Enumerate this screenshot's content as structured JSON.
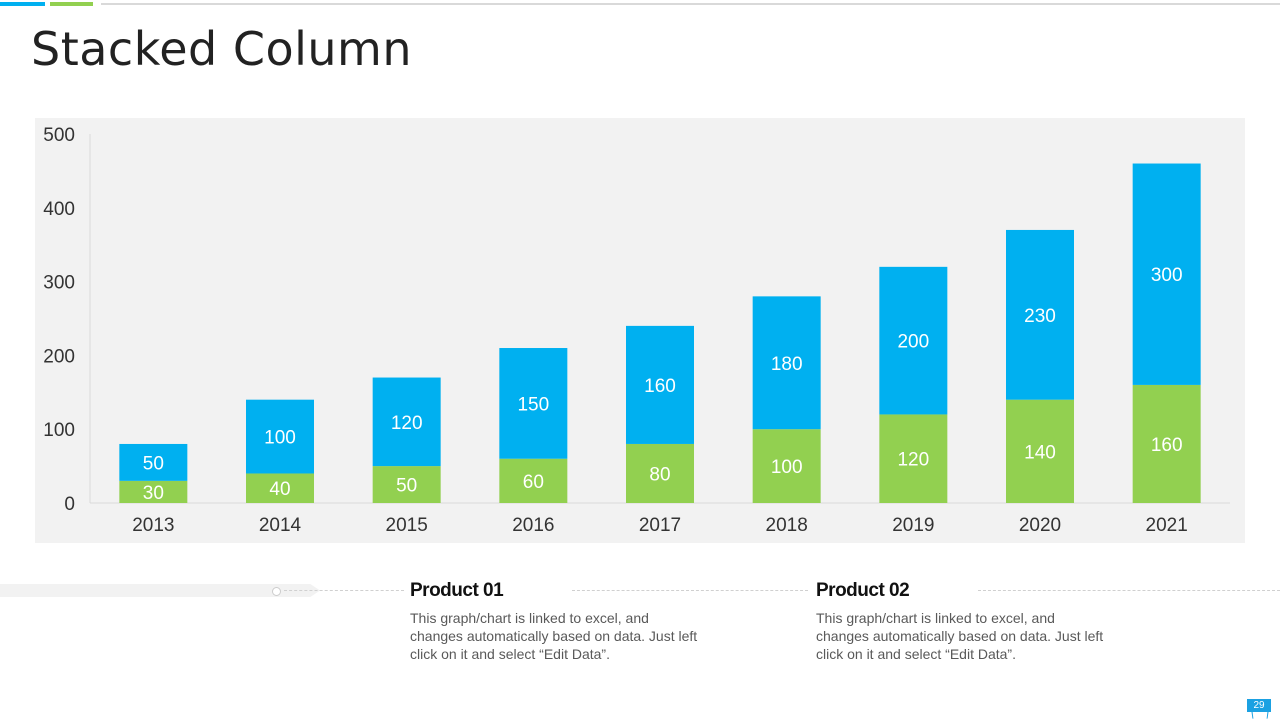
{
  "slide": {
    "title": "Stacked Column",
    "page_number": "29"
  },
  "colors": {
    "product_01": "#92d050",
    "product_02": "#00b0f0",
    "accent_blue": "#00b0f0",
    "accent_green": "#92d050"
  },
  "chart_data": {
    "type": "bar",
    "stacked": true,
    "title": "",
    "xlabel": "",
    "ylabel": "",
    "categories": [
      "2013",
      "2014",
      "2015",
      "2016",
      "2017",
      "2018",
      "2019",
      "2020",
      "2021"
    ],
    "series": [
      {
        "name": "Product 01",
        "values": [
          30,
          40,
          50,
          60,
          80,
          100,
          120,
          140,
          160
        ]
      },
      {
        "name": "Product 02",
        "values": [
          50,
          100,
          120,
          150,
          160,
          180,
          200,
          230,
          300
        ]
      }
    ],
    "ylim": [
      0,
      500
    ],
    "yticks": [
      "0",
      "100",
      "200",
      "300",
      "400",
      "500"
    ],
    "data_labels": true,
    "grid": false
  },
  "legend": [
    {
      "heading": "Product 01",
      "text": "This graph/chart is linked to excel, and changes automatically based on data. Just left click on it and select “Edit Data”."
    },
    {
      "heading": "Product 02",
      "text": "This graph/chart is linked to excel, and changes automatically based on data. Just left click on it and select “Edit Data”."
    }
  ]
}
